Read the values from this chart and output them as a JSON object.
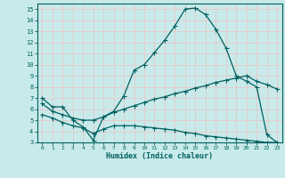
{
  "xlabel": "Humidex (Indice chaleur)",
  "bg_color": "#c8eaea",
  "grid_color": "#e8c8c8",
  "line_color": "#006060",
  "xlim": [
    -0.5,
    23.5
  ],
  "ylim": [
    3,
    15.5
  ],
  "xticks": [
    0,
    1,
    2,
    3,
    4,
    5,
    6,
    7,
    8,
    9,
    10,
    11,
    12,
    13,
    14,
    15,
    16,
    17,
    18,
    19,
    20,
    21,
    22,
    23
  ],
  "yticks": [
    3,
    4,
    5,
    6,
    7,
    8,
    9,
    10,
    11,
    12,
    13,
    14,
    15
  ],
  "line1_x": [
    0,
    1,
    2,
    3,
    4,
    5,
    6,
    7,
    8,
    9,
    10,
    11,
    12,
    13,
    14,
    15,
    16,
    17,
    18,
    19,
    20,
    21,
    22,
    23
  ],
  "line1_y": [
    7.0,
    6.2,
    6.2,
    5.0,
    4.4,
    3.2,
    5.3,
    5.8,
    7.2,
    9.5,
    10.0,
    11.1,
    12.2,
    13.5,
    15.0,
    15.1,
    14.5,
    13.2,
    11.5,
    9.0,
    8.5,
    8.0,
    3.7,
    3.0
  ],
  "line2_x": [
    0,
    1,
    2,
    3,
    4,
    5,
    6,
    7,
    8,
    9,
    10,
    11,
    12,
    13,
    14,
    15,
    16,
    17,
    18,
    19,
    20,
    21,
    22,
    23
  ],
  "line2_y": [
    6.5,
    5.8,
    5.5,
    5.2,
    5.0,
    5.0,
    5.3,
    5.7,
    6.0,
    6.3,
    6.6,
    6.9,
    7.1,
    7.4,
    7.6,
    7.9,
    8.1,
    8.4,
    8.6,
    8.8,
    9.0,
    8.5,
    8.2,
    7.8
  ],
  "line3_x": [
    0,
    1,
    2,
    3,
    4,
    5,
    6,
    7,
    8,
    9,
    10,
    11,
    12,
    13,
    14,
    15,
    16,
    17,
    18,
    19,
    20,
    21,
    22,
    23
  ],
  "line3_y": [
    5.5,
    5.2,
    4.8,
    4.5,
    4.3,
    3.8,
    4.2,
    4.5,
    4.5,
    4.5,
    4.4,
    4.3,
    4.2,
    4.1,
    3.9,
    3.8,
    3.6,
    3.5,
    3.4,
    3.3,
    3.2,
    3.1,
    3.0,
    3.0
  ]
}
